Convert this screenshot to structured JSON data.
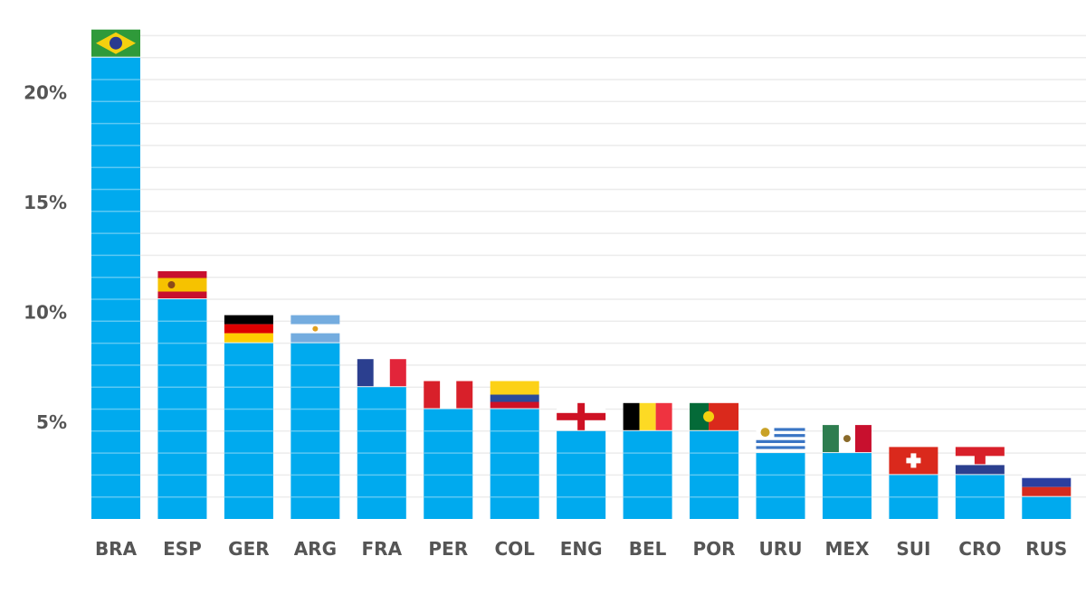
{
  "chart_data": {
    "type": "bar",
    "categories": [
      "BRA",
      "ESP",
      "GER",
      "ARG",
      "FRA",
      "PER",
      "COL",
      "ENG",
      "BEL",
      "POR",
      "URU",
      "MEX",
      "SUI",
      "CRO",
      "RUS"
    ],
    "values": [
      21,
      10,
      8,
      8,
      6,
      5,
      5,
      4,
      4,
      4,
      3,
      3,
      2,
      2,
      1
    ],
    "ylim": [
      0,
      22
    ],
    "yticks": [
      {
        "value": 5,
        "label": "5%"
      },
      {
        "value": 10,
        "label": "10%"
      },
      {
        "value": 15,
        "label": "15%"
      },
      {
        "value": 20,
        "label": "20%"
      }
    ],
    "grid": true,
    "bar_color": "#00aaee",
    "flags_above_bars": [
      "brazil-flag",
      "spain-flag",
      "germany-flag",
      "argentina-flag",
      "france-flag",
      "peru-flag",
      "colombia-flag",
      "england-flag",
      "belgium-flag",
      "portugal-flag",
      "uruguay-flag",
      "mexico-flag",
      "switzerland-flag",
      "croatia-flag",
      "russia-flag"
    ]
  }
}
